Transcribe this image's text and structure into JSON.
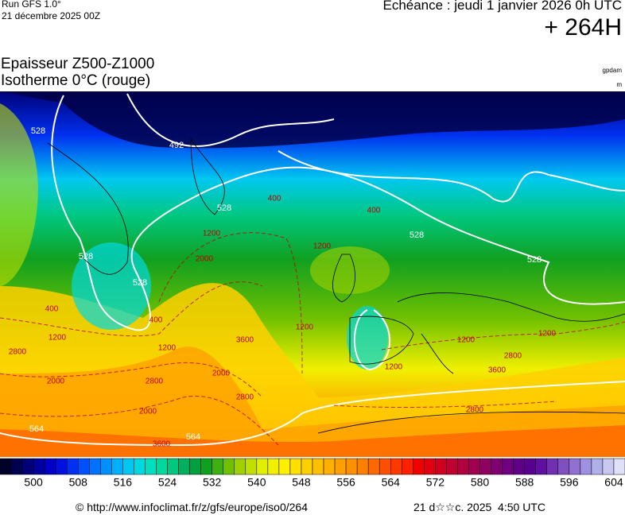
{
  "header": {
    "run": "Run GFS 1.0°",
    "date": "21 décembre 2025 00Z",
    "forecast": "Echéance : jeudi 1 janvier 2026 0h UTC",
    "lead": "+ 264H",
    "title": "Epaisseur Z500-Z1000",
    "subtitle": "Isotherme 0°C (rouge)",
    "unit_thickness": "gpdam",
    "unit_iso": "m"
  },
  "map": {
    "thickness_labels": [
      "528",
      "492",
      "528",
      "528",
      "528",
      "528",
      "528",
      "564",
      "564"
    ],
    "iso0_labels": [
      "400",
      "400",
      "400",
      "400",
      "1200",
      "2000",
      "1200",
      "1200",
      "2800",
      "2000",
      "3600",
      "2000",
      "2800",
      "2000",
      "1200",
      "1200",
      "1200",
      "2800",
      "3600",
      "3600",
      "2800",
      "1200",
      "1200",
      "2800"
    ]
  },
  "colorbar": {
    "lim": [
      494,
      606
    ],
    "ticks": [
      500,
      508,
      516,
      524,
      532,
      540,
      548,
      556,
      564,
      572,
      580,
      588,
      596,
      604
    ],
    "colors": [
      "#00002a",
      "#000050",
      "#000078",
      "#0000a0",
      "#0000c8",
      "#0010e0",
      "#0030f0",
      "#0050ff",
      "#0070ff",
      "#0090ff",
      "#00b0ff",
      "#00c8f0",
      "#00d8e0",
      "#00e0c0",
      "#00d8a0",
      "#00c880",
      "#00b060",
      "#00a040",
      "#10a020",
      "#40b010",
      "#70c000",
      "#a0d000",
      "#c0e000",
      "#e0f000",
      "#f0f000",
      "#fff000",
      "#ffe000",
      "#ffd000",
      "#ffc000",
      "#ffb000",
      "#ffa000",
      "#ff9000",
      "#ff8000",
      "#ff6800",
      "#ff5000",
      "#ff3800",
      "#ff2000",
      "#f00000",
      "#e00010",
      "#d00020",
      "#c00030",
      "#b00040",
      "#a00050",
      "#900060",
      "#800070",
      "#700080",
      "#600088",
      "#580090",
      "#6010a0",
      "#7030b0",
      "#8050c0",
      "#9070d0",
      "#a090e0",
      "#b0b0e8",
      "#c8c8f0",
      "#e0e0f8"
    ]
  },
  "footer": {
    "url": "© http://www.infoclimat.fr/z/gfs/europe/iso0/264",
    "stamp": "21 d☆☆c. 2025  4:50 UTC"
  }
}
